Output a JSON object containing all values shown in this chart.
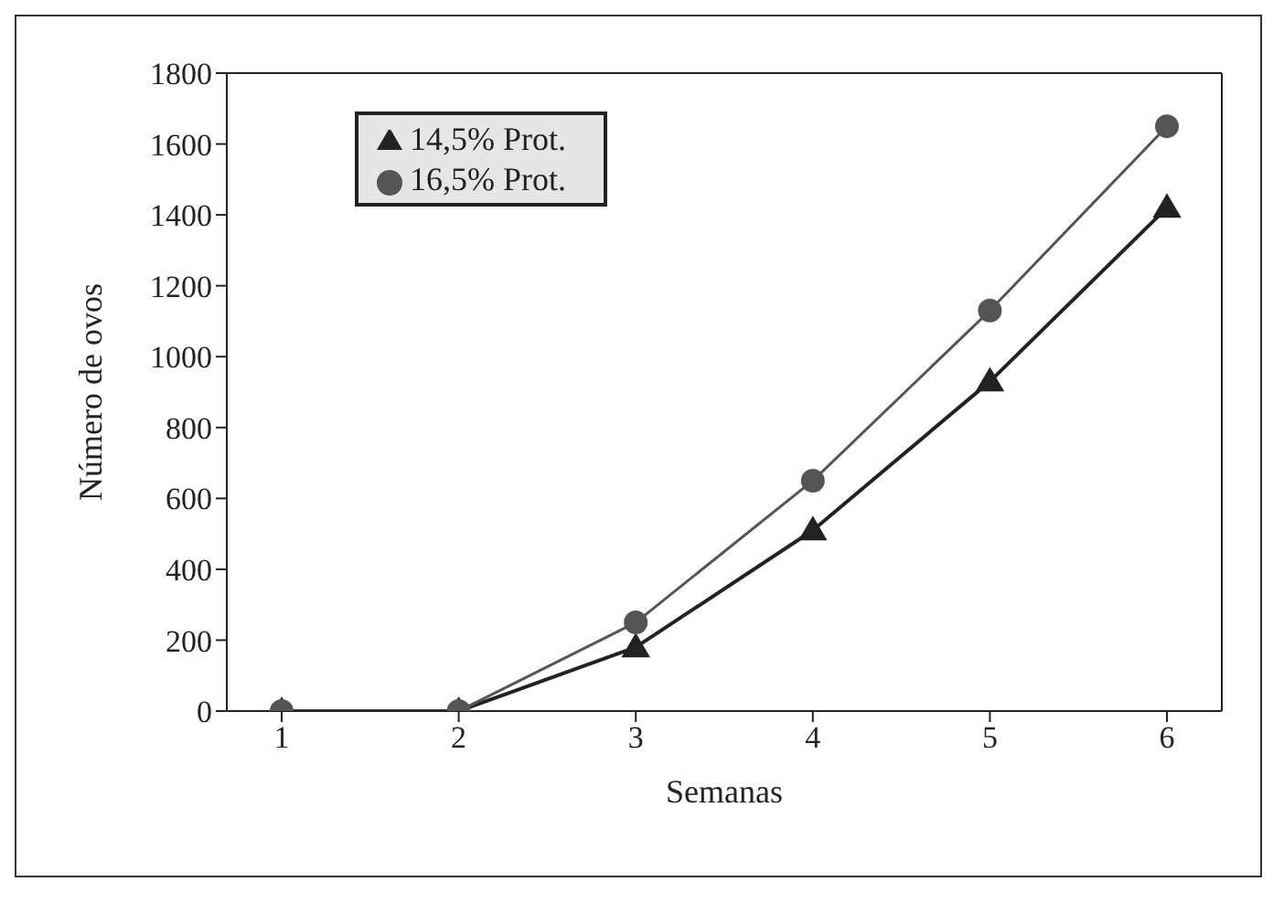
{
  "chart_data": {
    "type": "line",
    "xlabel": "Semanas",
    "ylabel": "Número de ovos",
    "categories": [
      "1",
      "2",
      "3",
      "4",
      "5",
      "6"
    ],
    "series": [
      {
        "name": "14,5% Prot.",
        "color": "#222222",
        "marker": "triangle",
        "values": [
          0,
          0,
          180,
          510,
          930,
          1420
        ]
      },
      {
        "name": "16,5% Prot.",
        "color": "#555555",
        "marker": "circle",
        "values": [
          0,
          0,
          250,
          650,
          1130,
          1650
        ]
      }
    ],
    "ylim": [
      0,
      1800
    ],
    "yticks": [
      0,
      200,
      400,
      600,
      800,
      1000,
      1200,
      1400,
      1600,
      1800
    ],
    "grid": false,
    "legend": "top left"
  }
}
